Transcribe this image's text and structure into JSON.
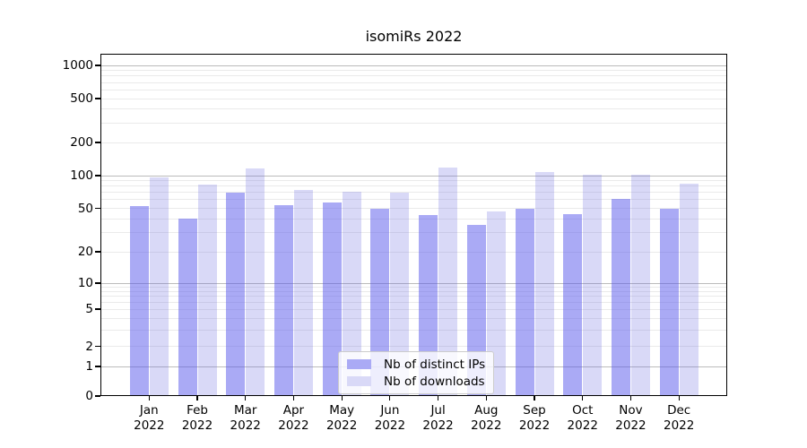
{
  "chart_data": {
    "type": "bar",
    "title": "isomiRs 2022",
    "categories": [
      "Jan 2022",
      "Feb 2022",
      "Mar 2022",
      "Apr 2022",
      "May 2022",
      "Jun 2022",
      "Jul 2022",
      "Aug 2022",
      "Sep 2022",
      "Oct 2022",
      "Nov 2022",
      "Dec 2022"
    ],
    "x_tick_line1": [
      "Jan",
      "Feb",
      "Mar",
      "Apr",
      "May",
      "Jun",
      "Jul",
      "Aug",
      "Sep",
      "Oct",
      "Nov",
      "Dec"
    ],
    "x_tick_line2": "2022",
    "series": [
      {
        "name": "Nb of distinct IPs",
        "fill": "rgba(85,85,235,0.5)",
        "swatch_color": "#aaaaf5",
        "values": [
          52,
          40,
          70,
          53,
          57,
          50,
          43,
          35,
          50,
          44,
          61,
          50
        ]
      },
      {
        "name": "Nb of downloads",
        "fill": "rgba(103,103,223,0.25)",
        "swatch_color": "#d9d9f7",
        "values": [
          97,
          82,
          116,
          74,
          71,
          70,
          119,
          47,
          108,
          101,
          101,
          85
        ]
      }
    ],
    "yscale": "symlog",
    "yticks": [
      0,
      1,
      2,
      5,
      10,
      20,
      50,
      100,
      200,
      500,
      1000
    ],
    "ylim": [
      0,
      1280
    ],
    "grid": "both",
    "grid_major_color": "#bbbbbb",
    "grid_minor_color": "#eaeaea",
    "legend_position": "lower center"
  }
}
